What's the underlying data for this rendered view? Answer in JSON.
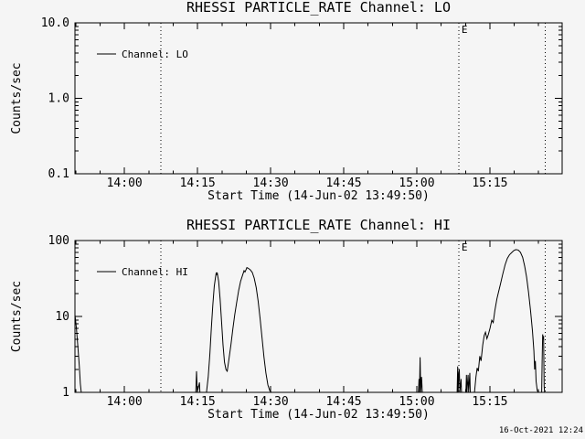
{
  "page": {
    "background": "#f5f5f5",
    "foreground": "#000000"
  },
  "datestamp": "16-Oct-2021 12:24",
  "chart_data": [
    {
      "type": "line",
      "title": "RHESSI PARTICLE_RATE Channel: LO",
      "xlabel": "Start Time (14-Jun-02 13:49:50)",
      "ylabel": "Counts/sec",
      "yscale": "log",
      "ylim": [
        0.1,
        10.0
      ],
      "yticks": [
        [
          10.0,
          "10.0"
        ],
        [
          1.0,
          "1.0"
        ],
        [
          0.1,
          "0.1"
        ]
      ],
      "xlim_minutes": [
        0,
        100
      ],
      "xticks": [
        [
          10.167,
          "14:00"
        ],
        [
          25.167,
          "14:15"
        ],
        [
          40.167,
          "14:30"
        ],
        [
          55.167,
          "14:45"
        ],
        [
          70.167,
          "15:00"
        ],
        [
          85.167,
          "15:15"
        ]
      ],
      "xminor_ticks": [
        0.167,
        5.167,
        15.167,
        20.167,
        30.167,
        35.167,
        45.167,
        50.167,
        60.167,
        65.167,
        75.167,
        80.167,
        90.167,
        95.167
      ],
      "legend_label": "Channel: LO",
      "event_lines": [
        {
          "t": 17.63,
          "label": ""
        },
        {
          "t": 78.77,
          "label": "E"
        },
        {
          "t": 96.5,
          "label": ""
        }
      ],
      "series": [
        {
          "name": "Channel: LO",
          "points": []
        }
      ]
    },
    {
      "type": "line",
      "title": "RHESSI PARTICLE_RATE Channel: HI",
      "xlabel": "Start Time (14-Jun-02 13:49:50)",
      "ylabel": "Counts/sec",
      "yscale": "log",
      "ylim": [
        1,
        100
      ],
      "yticks": [
        [
          100,
          "100"
        ],
        [
          10,
          "10"
        ],
        [
          1,
          "1"
        ]
      ],
      "xlim_minutes": [
        0,
        100
      ],
      "xticks": [
        [
          10.167,
          "14:00"
        ],
        [
          25.167,
          "14:15"
        ],
        [
          40.167,
          "14:30"
        ],
        [
          55.167,
          "14:45"
        ],
        [
          70.167,
          "15:00"
        ],
        [
          85.167,
          "15:15"
        ]
      ],
      "xminor_ticks": [
        0.167,
        5.167,
        15.167,
        20.167,
        30.167,
        35.167,
        45.167,
        50.167,
        60.167,
        65.167,
        75.167,
        80.167,
        90.167,
        95.167
      ],
      "legend_label": "Channel: HI",
      "event_lines": [
        {
          "t": 17.63,
          "label": ""
        },
        {
          "t": 78.77,
          "label": "E"
        },
        {
          "t": 96.5,
          "label": ""
        }
      ],
      "series": [
        {
          "name": "Channel: HI",
          "points": [
            [
              0,
              10.5
            ],
            [
              0.3,
              7
            ],
            [
              0.6,
              4
            ],
            [
              0.9,
              2.2
            ],
            [
              1.1,
              1.3
            ],
            [
              1.3,
              1
            ],
            [
              24.8,
              1
            ],
            [
              24.95,
              1.9
            ],
            [
              25.1,
              1
            ],
            [
              25.55,
              1.35
            ],
            [
              25.65,
              1
            ],
            [
              27.0,
              1
            ],
            [
              27.35,
              1.6
            ],
            [
              27.7,
              3.2
            ],
            [
              28.0,
              7
            ],
            [
              28.3,
              14
            ],
            [
              28.6,
              25
            ],
            [
              28.85,
              33
            ],
            [
              29.0,
              38
            ],
            [
              29.1,
              35
            ],
            [
              29.2,
              38
            ],
            [
              29.5,
              29
            ],
            [
              29.8,
              17
            ],
            [
              30.1,
              8.5
            ],
            [
              30.4,
              4.2
            ],
            [
              30.7,
              2.5
            ],
            [
              31.0,
              2.0
            ],
            [
              31.25,
              1.9
            ],
            [
              31.6,
              2.7
            ],
            [
              32.0,
              4.2
            ],
            [
              32.4,
              6.8
            ],
            [
              32.8,
              10.5
            ],
            [
              33.2,
              15.5
            ],
            [
              33.6,
              22
            ],
            [
              34.0,
              29
            ],
            [
              34.4,
              35
            ],
            [
              34.7,
              40
            ],
            [
              34.9,
              38.5
            ],
            [
              35.1,
              41
            ],
            [
              35.3,
              44
            ],
            [
              35.6,
              43
            ],
            [
              36.0,
              41
            ],
            [
              36.4,
              38
            ],
            [
              36.8,
              32
            ],
            [
              37.2,
              24
            ],
            [
              37.6,
              16
            ],
            [
              38.0,
              9.5
            ],
            [
              38.4,
              5.2
            ],
            [
              38.8,
              2.9
            ],
            [
              39.2,
              1.8
            ],
            [
              39.6,
              1.25
            ],
            [
              40.0,
              1.05
            ],
            [
              40.3,
              1
            ],
            [
              70.5,
              1
            ],
            [
              70.62,
              1.5
            ],
            [
              70.72,
              1
            ],
            [
              70.85,
              2.9
            ],
            [
              70.98,
              1
            ],
            [
              71.15,
              1.6
            ],
            [
              71.3,
              1
            ],
            [
              78.45,
              1
            ],
            [
              78.55,
              2.2
            ],
            [
              78.65,
              1
            ],
            [
              78.78,
              1.8
            ],
            [
              78.9,
              2.0
            ],
            [
              79.0,
              1
            ],
            [
              79.25,
              1.5
            ],
            [
              79.35,
              1
            ],
            [
              80.25,
              1
            ],
            [
              80.35,
              1.7
            ],
            [
              80.45,
              1
            ],
            [
              80.7,
              1.7
            ],
            [
              80.8,
              1
            ],
            [
              81.05,
              1.8
            ],
            [
              81.15,
              1
            ],
            [
              82.0,
              1
            ],
            [
              82.3,
              1.6
            ],
            [
              82.55,
              2.1
            ],
            [
              82.8,
              1.9
            ],
            [
              83.1,
              3.0
            ],
            [
              83.35,
              2.6
            ],
            [
              83.7,
              4.2
            ],
            [
              84.0,
              5.6
            ],
            [
              84.25,
              6.2
            ],
            [
              84.55,
              5.1
            ],
            [
              84.85,
              5.8
            ],
            [
              85.2,
              7.0
            ],
            [
              85.55,
              8.9
            ],
            [
              85.85,
              8.3
            ],
            [
              86.2,
              12
            ],
            [
              86.6,
              17
            ],
            [
              86.95,
              21
            ],
            [
              87.35,
              27
            ],
            [
              87.8,
              36
            ],
            [
              88.3,
              48
            ],
            [
              88.75,
              58
            ],
            [
              89.2,
              65
            ],
            [
              89.7,
              70
            ],
            [
              90.1,
              74
            ],
            [
              90.5,
              76
            ],
            [
              91.0,
              75
            ],
            [
              91.45,
              70
            ],
            [
              91.9,
              60
            ],
            [
              92.3,
              46
            ],
            [
              92.7,
              33
            ],
            [
              93.1,
              21
            ],
            [
              93.5,
              12
            ],
            [
              93.9,
              6.5
            ],
            [
              94.2,
              3.5
            ],
            [
              94.35,
              2.0
            ],
            [
              94.5,
              2.6
            ],
            [
              94.65,
              1.4
            ],
            [
              94.9,
              1.05
            ],
            [
              95.1,
              1
            ],
            [
              95.8,
              1
            ],
            [
              95.9,
              2.5
            ],
            [
              96.0,
              5.8
            ],
            [
              96.1,
              5.0
            ],
            [
              96.2,
              5.5
            ],
            [
              96.3,
              1.2
            ],
            [
              96.4,
              1
            ]
          ]
        }
      ]
    }
  ]
}
